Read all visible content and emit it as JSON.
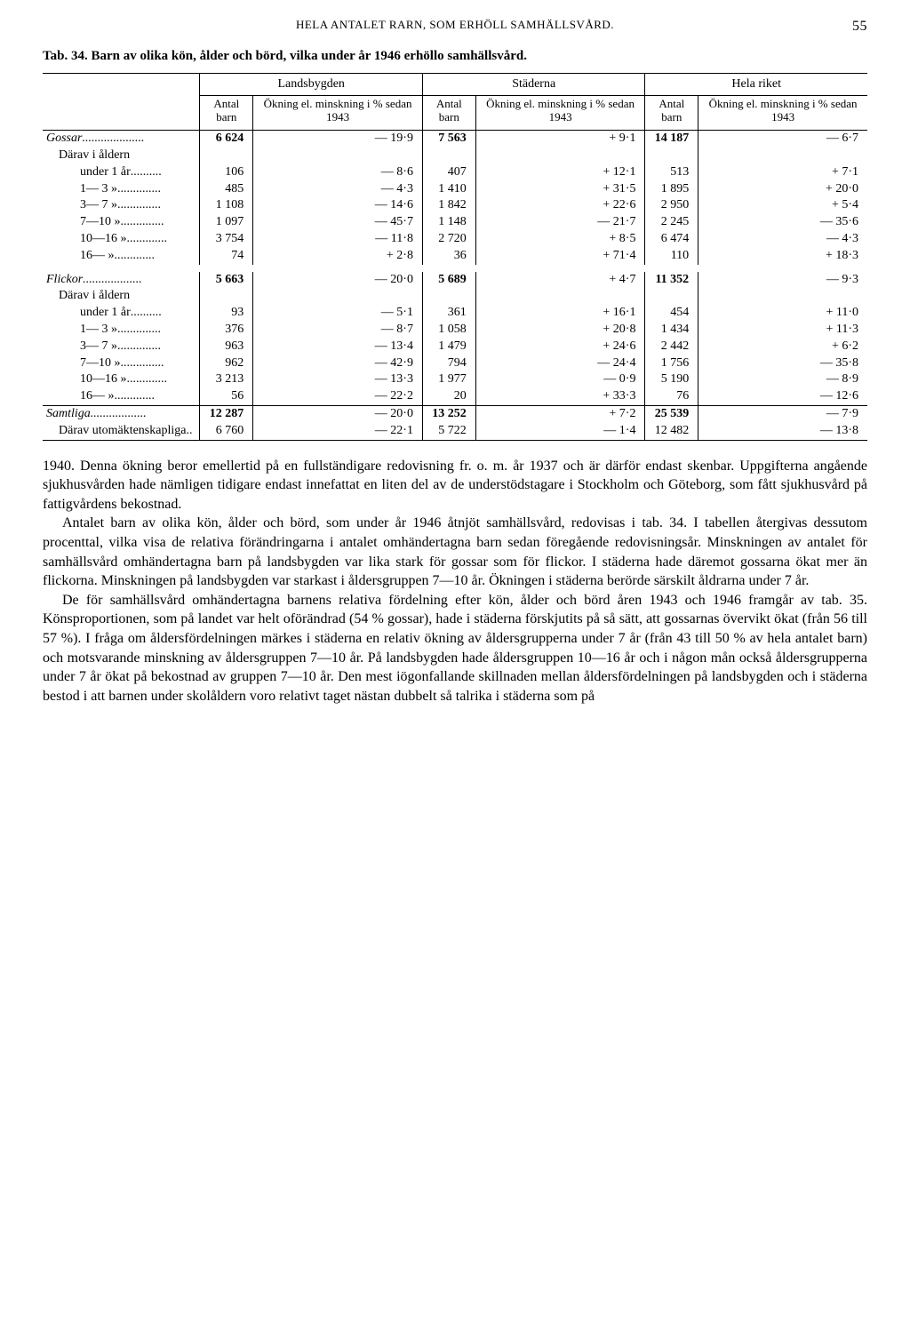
{
  "running_head": "HELA ANTALET RARN, SOM ERHÖLL SAMHÄLLSVÅRD.",
  "page_number": "55",
  "table_title_prefix": "Tab. 34.",
  "table_title": "Barn av olika kön, ålder och börd, vilka under år 1946 erhöllo samhällsvård.",
  "table": {
    "group_headers": [
      "Landsbygden",
      "Städerna",
      "Hela riket"
    ],
    "sub_headers": {
      "antal": "Antal barn",
      "okning": "Ökning el. minskning i % sedan 1943"
    },
    "rows": [
      {
        "label": "Gossar",
        "italic": true,
        "indent": 0,
        "dots": true,
        "vals": [
          "6 624",
          "— 19·9",
          "7 563",
          "+ 9·1",
          "14 187",
          "— 6·7"
        ],
        "bold_vals": true
      },
      {
        "label": "Därav i åldern",
        "indent": 1,
        "vals": [
          "",
          "",
          "",
          "",
          "",
          ""
        ]
      },
      {
        "label": "under 1 år",
        "indent": 2,
        "dots": true,
        "vals": [
          "106",
          "— 8·6",
          "407",
          "+ 12·1",
          "513",
          "+ 7·1"
        ]
      },
      {
        "label": "1— 3 »",
        "indent": 2,
        "dots": true,
        "vals": [
          "485",
          "— 4·3",
          "1 410",
          "+ 31·5",
          "1 895",
          "+ 20·0"
        ]
      },
      {
        "label": "3— 7 »",
        "indent": 2,
        "dots": true,
        "vals": [
          "1 108",
          "— 14·6",
          "1 842",
          "+ 22·6",
          "2 950",
          "+ 5·4"
        ]
      },
      {
        "label": "7—10 »",
        "indent": 2,
        "dots": true,
        "vals": [
          "1 097",
          "— 45·7",
          "1 148",
          "— 21·7",
          "2 245",
          "— 35·6"
        ]
      },
      {
        "label": "10—16 »",
        "indent": 2,
        "dots": true,
        "vals": [
          "3 754",
          "— 11·8",
          "2 720",
          "+ 8·5",
          "6 474",
          "— 4·3"
        ]
      },
      {
        "label": "16—   »",
        "indent": 2,
        "dots": true,
        "vals": [
          "74",
          "+ 2·8",
          "36",
          "+ 71·4",
          "110",
          "+ 18·3"
        ]
      },
      {
        "gap": true
      },
      {
        "label": "Flickor",
        "italic": true,
        "indent": 0,
        "dots": true,
        "vals": [
          "5 663",
          "— 20·0",
          "5 689",
          "+ 4·7",
          "11 352",
          "— 9·3"
        ],
        "bold_vals": true
      },
      {
        "label": "Därav i åldern",
        "indent": 1,
        "vals": [
          "",
          "",
          "",
          "",
          "",
          ""
        ]
      },
      {
        "label": "under 1 år",
        "indent": 2,
        "dots": true,
        "vals": [
          "93",
          "— 5·1",
          "361",
          "+ 16·1",
          "454",
          "+ 11·0"
        ]
      },
      {
        "label": "1— 3 »",
        "indent": 2,
        "dots": true,
        "vals": [
          "376",
          "— 8·7",
          "1 058",
          "+ 20·8",
          "1 434",
          "+ 11·3"
        ]
      },
      {
        "label": "3— 7 »",
        "indent": 2,
        "dots": true,
        "vals": [
          "963",
          "— 13·4",
          "1 479",
          "+ 24·6",
          "2 442",
          "+ 6·2"
        ]
      },
      {
        "label": "7—10 »",
        "indent": 2,
        "dots": true,
        "vals": [
          "962",
          "— 42·9",
          "794",
          "— 24·4",
          "1 756",
          "— 35·8"
        ]
      },
      {
        "label": "10—16 »",
        "indent": 2,
        "dots": true,
        "vals": [
          "3 213",
          "— 13·3",
          "1 977",
          "— 0·9",
          "5 190",
          "— 8·9"
        ]
      },
      {
        "label": "16—   »",
        "indent": 2,
        "dots": true,
        "vals": [
          "56",
          "— 22·2",
          "20",
          "+ 33·3",
          "76",
          "— 12·6"
        ]
      },
      {
        "label": "Samtliga",
        "italic": true,
        "indent": 0,
        "dots": true,
        "vals": [
          "12 287",
          "— 20·0",
          "13 252",
          "+ 7·2",
          "25 539",
          "— 7·9"
        ],
        "bold_vals": true,
        "top_rule": true
      },
      {
        "label": "Därav utomäktenskapliga",
        "indent": 1,
        "dots": true,
        "vals": [
          "6 760",
          "— 22·1",
          "5 722",
          "— 1·4",
          "12 482",
          "— 13·8"
        ]
      }
    ]
  },
  "paragraphs": [
    "1940. Denna ökning beror emellertid på en fullständigare redovisning fr. o. m. år 1937 och är därför endast skenbar. Uppgifterna angående sjukhusvården hade nämligen tidigare endast innefattat en liten del av de understödstagare i Stockholm och Göteborg, som fått sjukhusvård på fattigvårdens bekostnad.",
    "Antalet barn av olika kön, ålder och börd, som under år 1946 åtnjöt samhällsvård, redovisas i tab. 34. I tabellen återgivas dessutom procenttal, vilka visa de relativa förändringarna i antalet omhändertagna barn sedan föregående redovisningsår. Minskningen av antalet för samhällsvård omhändertagna barn på landsbygden var lika stark för gossar som för flickor. I städerna hade däremot gossarna ökat mer än flickorna. Minskningen på landsbygden var starkast i åldersgruppen 7—10 år. Ökningen i städerna berörde särskilt åldrarna under 7 år.",
    "De för samhällsvård omhändertagna barnens relativa fördelning efter kön, ålder och börd åren 1943 och 1946 framgår av tab. 35. Könsproportionen, som på landet var helt oförändrad (54 % gossar), hade i städerna förskjutits på så sätt, att gossarnas övervikt ökat (från 56 till 57 %). I fråga om åldersfördelningen märkes i städerna en relativ ökning av åldersgrupperna under 7 år (från 43 till 50 % av hela antalet barn) och motsvarande minskning av åldersgruppen 7—10 år. På landsbygden hade åldersgruppen 10—16 år och i någon mån också åldersgrupperna under 7 år ökat på bekostnad av gruppen 7—10 år. Den mest iögonfallande skillnaden mellan åldersfördelningen på landsbygden och i städerna bestod i att barnen under skolåldern voro relativt taget nästan dubbelt så talrika i städerna som på"
  ]
}
